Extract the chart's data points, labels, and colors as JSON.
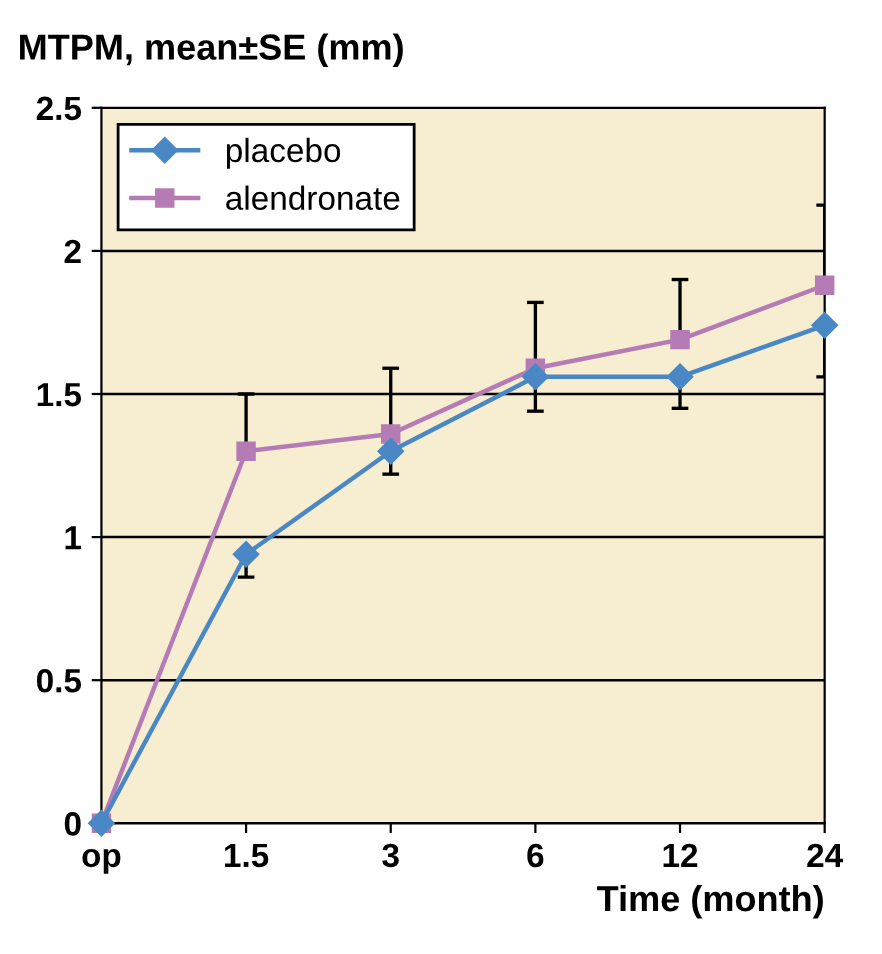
{
  "chart_data": {
    "type": "line",
    "title": "MTPM, mean±SE (mm)",
    "xlabel": "Time (month)",
    "categories": [
      "op",
      "1.5",
      "3",
      "6",
      "12",
      "24"
    ],
    "series": [
      {
        "name": "placebo",
        "color": "#4a87c5",
        "marker": "diamond",
        "values": [
          0,
          0.94,
          1.3,
          1.56,
          1.56,
          1.74
        ],
        "errors": [
          null,
          [
            0.86,
            0.94
          ],
          [
            1.22,
            1.3
          ],
          [
            1.44,
            1.56
          ],
          [
            1.45,
            1.56
          ],
          [
            1.56,
            1.74
          ]
        ]
      },
      {
        "name": "alendronate",
        "color": "#b57bb5",
        "marker": "square",
        "values": [
          0,
          1.3,
          1.36,
          1.59,
          1.69,
          1.88
        ],
        "errors": [
          null,
          [
            1.3,
            1.5
          ],
          [
            1.36,
            1.59
          ],
          [
            1.59,
            1.82
          ],
          [
            1.69,
            1.9
          ],
          [
            1.88,
            2.16
          ]
        ]
      }
    ],
    "ylim": [
      0,
      2.5
    ],
    "yticks": [
      0,
      0.5,
      1,
      1.5,
      2,
      2.5
    ],
    "grid": "y",
    "legend": "top left"
  }
}
